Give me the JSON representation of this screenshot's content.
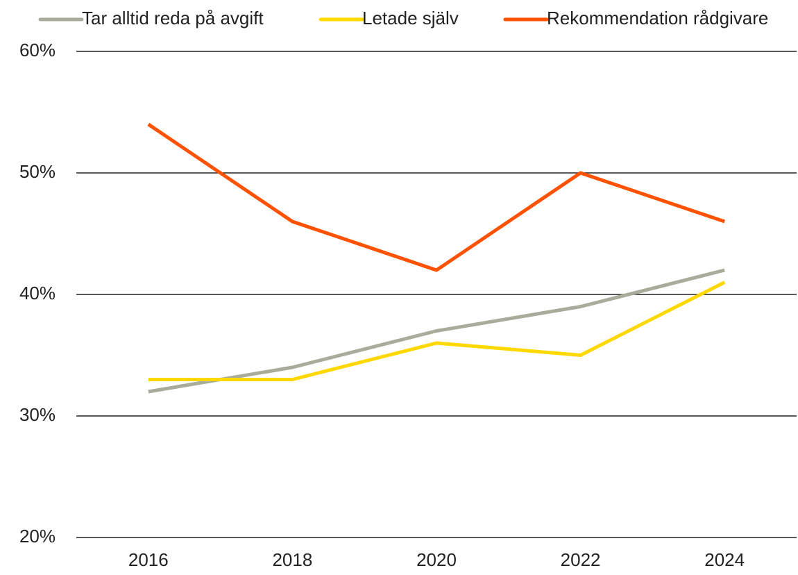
{
  "chart_data": {
    "type": "line",
    "categories": [
      "2016",
      "2018",
      "2020",
      "2022",
      "2024"
    ],
    "series": [
      {
        "name": "Tar alltid reda på avgift",
        "color": "#a9ac9a",
        "values": [
          32,
          34,
          37,
          39,
          42
        ]
      },
      {
        "name": "Letade själv",
        "color": "#ffd800",
        "values": [
          33,
          33,
          36,
          35,
          41
        ]
      },
      {
        "name": "Rekommendation rådgivare",
        "color": "#ff5200",
        "values": [
          54,
          46,
          42,
          50,
          46
        ]
      }
    ],
    "ylim": [
      20,
      60
    ],
    "yticks": [
      {
        "value": 20,
        "label": "20%"
      },
      {
        "value": 30,
        "label": "30%"
      },
      {
        "value": 40,
        "label": "40%"
      },
      {
        "value": 50,
        "label": "50%"
      },
      {
        "value": 60,
        "label": "60%"
      }
    ],
    "grid": true,
    "legend": "top"
  }
}
